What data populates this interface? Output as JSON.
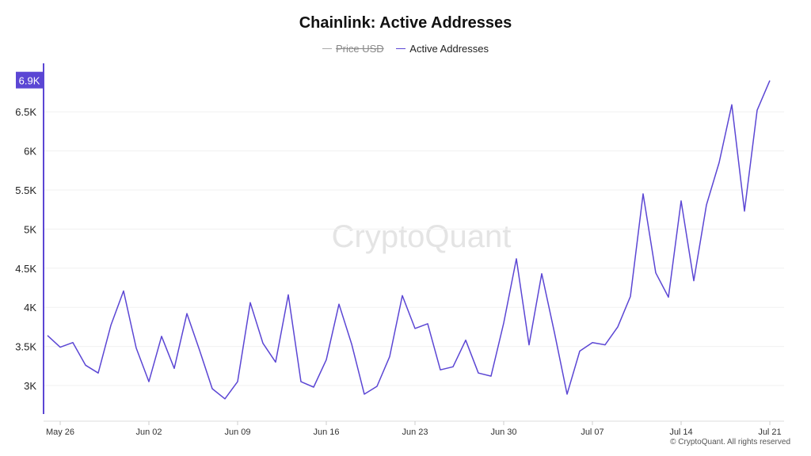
{
  "chart_data": {
    "type": "line",
    "title": "Chainlink: Active Addresses",
    "legend": [
      {
        "name": "Price USD",
        "color": "#aaaaaa",
        "hidden": true
      },
      {
        "name": "Active Addresses",
        "color": "#5b46d4",
        "hidden": false
      }
    ],
    "legend_placement": "top-center",
    "x_start": "2024-05-25",
    "x_tick_labels": [
      "May 26",
      "Jun 02",
      "Jun 09",
      "Jun 16",
      "Jun 23",
      "Jun 30",
      "Jul 07",
      "Jul 14",
      "Jul 21"
    ],
    "y_tick_labels": [
      "3K",
      "3.5K",
      "4K",
      "4.5K",
      "5K",
      "5.5K",
      "6K",
      "6.5K"
    ],
    "y_highlight_label": "6.9K",
    "ylim": [
      2750,
      7050
    ],
    "grid": true,
    "series": [
      {
        "name": "Active Addresses",
        "color": "#5b46d4",
        "values": [
          3640,
          3490,
          3550,
          3260,
          3160,
          3770,
          4210,
          3480,
          3050,
          3630,
          3220,
          3920,
          3450,
          2960,
          2830,
          3050,
          4060,
          3540,
          3300,
          4160,
          3050,
          2980,
          3330,
          4040,
          3530,
          2890,
          2990,
          3370,
          4150,
          3730,
          3790,
          3200,
          3240,
          3580,
          3160,
          3120,
          3800,
          4620,
          3520,
          4430,
          3680,
          2890,
          3440,
          3550,
          3520,
          3750,
          4140,
          5450,
          4440,
          4130,
          5360,
          4340,
          5310,
          5850,
          6590,
          5230,
          6520,
          6900
        ]
      }
    ],
    "watermark": "CryptoQuant"
  },
  "footer": "© CryptoQuant. All rights reserved",
  "colors": {
    "accent": "#5b46d4",
    "grid": "#f0f0f0",
    "axis": "#dddddd"
  }
}
